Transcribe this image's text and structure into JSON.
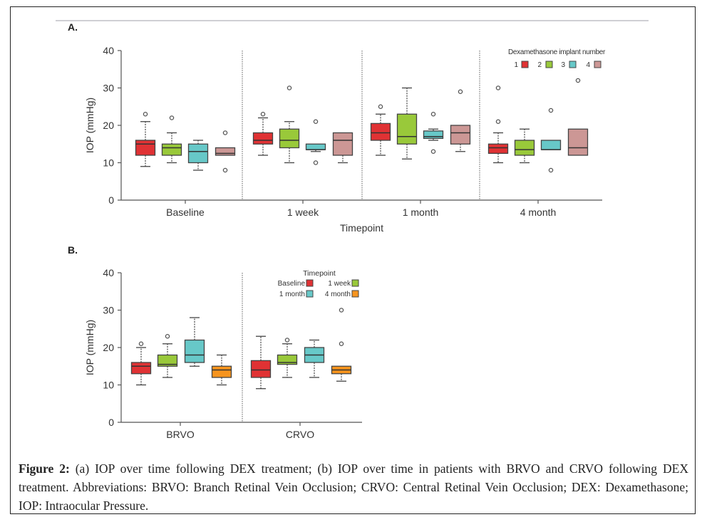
{
  "chart_data": [
    {
      "type": "box",
      "panel_label": "A.",
      "title": "",
      "xlabel": "Timepoint",
      "ylabel": "IOP (mmHg)",
      "ylim": [
        0,
        40
      ],
      "yticks": [
        0,
        10,
        20,
        30,
        40
      ],
      "categories": [
        "Baseline",
        "1 week",
        "1 month",
        "4 month"
      ],
      "legend": {
        "title": "Dexamethasone implant number",
        "position": "top-right"
      },
      "series": [
        {
          "name": "1",
          "color": "#e03234",
          "boxes": [
            {
              "whisker_low": 9,
              "q1": 12,
              "median": 15,
              "q3": 16,
              "whisker_high": 21,
              "outliers": [
                23
              ]
            },
            {
              "whisker_low": 12,
              "q1": 15,
              "median": 16,
              "q3": 18,
              "whisker_high": 22,
              "outliers": [
                23
              ]
            },
            {
              "whisker_low": 12,
              "q1": 16,
              "median": 18,
              "q3": 20.5,
              "whisker_high": 23,
              "outliers": [
                25
              ]
            },
            {
              "whisker_low": 10,
              "q1": 12.5,
              "median": 14,
              "q3": 15,
              "whisker_high": 18,
              "outliers": [
                21,
                30
              ]
            }
          ]
        },
        {
          "name": "2",
          "color": "#99c93a",
          "boxes": [
            {
              "whisker_low": 10,
              "q1": 12,
              "median": 14,
              "q3": 15,
              "whisker_high": 18,
              "outliers": [
                22
              ]
            },
            {
              "whisker_low": 10,
              "q1": 14,
              "median": 16,
              "q3": 19,
              "whisker_high": 21,
              "outliers": [
                30
              ]
            },
            {
              "whisker_low": 11,
              "q1": 15,
              "median": 17,
              "q3": 23,
              "whisker_high": 30,
              "outliers": []
            },
            {
              "whisker_low": 10,
              "q1": 12,
              "median": 13.5,
              "q3": 16,
              "whisker_high": 19,
              "outliers": []
            }
          ]
        },
        {
          "name": "3",
          "color": "#67c8c8",
          "boxes": [
            {
              "whisker_low": 8,
              "q1": 10,
              "median": 13,
              "q3": 15,
              "whisker_high": 16,
              "outliers": []
            },
            {
              "whisker_low": 13,
              "q1": 13.5,
              "median": 13.5,
              "q3": 15,
              "whisker_high": 15,
              "outliers": [
                10,
                21
              ]
            },
            {
              "whisker_low": 16,
              "q1": 16.5,
              "median": 17,
              "q3": 18.5,
              "whisker_high": 19,
              "outliers": [
                13,
                23
              ]
            },
            {
              "whisker_low": 13.5,
              "q1": 13.5,
              "median": 13.5,
              "q3": 16,
              "whisker_high": 16,
              "outliers": [
                8,
                24
              ]
            }
          ]
        },
        {
          "name": "4",
          "color": "#cc9795",
          "boxes": [
            {
              "whisker_low": 12,
              "q1": 12,
              "median": 12.5,
              "q3": 14,
              "whisker_high": 14,
              "outliers": [
                8,
                18
              ]
            },
            {
              "whisker_low": 10,
              "q1": 12,
              "median": 16,
              "q3": 18,
              "whisker_high": 18,
              "outliers": []
            },
            {
              "whisker_low": 13,
              "q1": 15,
              "median": 18,
              "q3": 20,
              "whisker_high": 20,
              "outliers": [
                29
              ]
            },
            {
              "whisker_low": 12,
              "q1": 12,
              "median": 14,
              "q3": 19,
              "whisker_high": 19,
              "outliers": [
                32
              ]
            }
          ]
        }
      ]
    },
    {
      "type": "box",
      "panel_label": "B.",
      "title": "",
      "xlabel": "",
      "ylabel": "IOP (mmHg)",
      "ylim": [
        0,
        40
      ],
      "yticks": [
        0,
        10,
        20,
        30,
        40
      ],
      "categories": [
        "BRVO",
        "CRVO"
      ],
      "legend": {
        "title": "Timepoint",
        "position": "top-right"
      },
      "series": [
        {
          "name": "Baseline",
          "color": "#e03234",
          "boxes": [
            {
              "whisker_low": 10,
              "q1": 13,
              "median": 15,
              "q3": 16,
              "whisker_high": 20,
              "outliers": [
                21
              ]
            },
            {
              "whisker_low": 9,
              "q1": 12,
              "median": 14,
              "q3": 16.5,
              "whisker_high": 23,
              "outliers": []
            }
          ]
        },
        {
          "name": "1 week",
          "color": "#99c93a",
          "boxes": [
            {
              "whisker_low": 12,
              "q1": 15,
              "median": 15.5,
              "q3": 18,
              "whisker_high": 21,
              "outliers": [
                23
              ]
            },
            {
              "whisker_low": 12,
              "q1": 15.5,
              "median": 16,
              "q3": 18,
              "whisker_high": 21,
              "outliers": [
                22
              ]
            }
          ]
        },
        {
          "name": "1 month",
          "color": "#67c8c8",
          "boxes": [
            {
              "whisker_low": 15,
              "q1": 16,
              "median": 18,
              "q3": 22,
              "whisker_high": 28,
              "outliers": []
            },
            {
              "whisker_low": 12,
              "q1": 16,
              "median": 18,
              "q3": 20,
              "whisker_high": 22,
              "outliers": []
            }
          ]
        },
        {
          "name": "4 month",
          "color": "#f6941e",
          "boxes": [
            {
              "whisker_low": 10,
              "q1": 12,
              "median": 14,
              "q3": 15,
              "whisker_high": 18,
              "outliers": []
            },
            {
              "whisker_low": 11,
              "q1": 13,
              "median": 14,
              "q3": 15,
              "whisker_high": 15,
              "outliers": [
                21,
                30
              ]
            }
          ]
        }
      ]
    }
  ],
  "caption": {
    "label": "Figure 2:",
    "text": " (a) IOP over time following DEX treatment; (b) IOP over time in patients with BRVO and CRVO following DEX treatment. Abbreviations: BRVO: Branch Retinal Vein Occlusion; CRVO: Central Retinal Vein Occlusion; DEX: Dexamethasone; IOP: Intraocular Pressure."
  }
}
